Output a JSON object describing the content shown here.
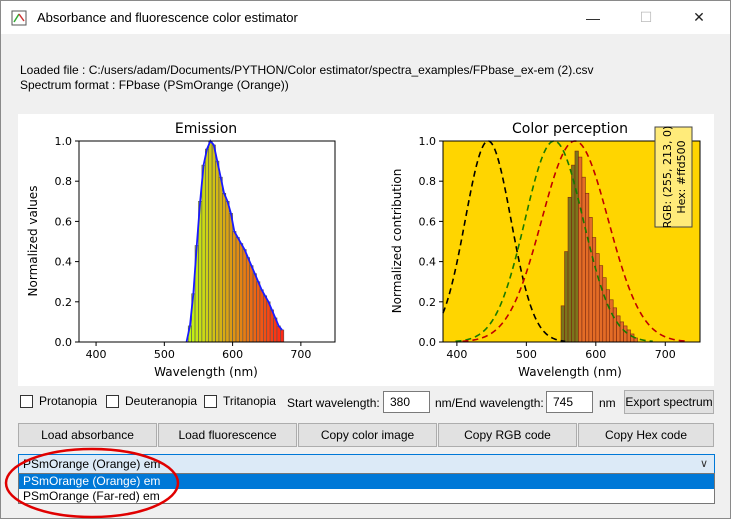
{
  "window": {
    "title": "Absorbance and fluorescence color estimator",
    "controls": {
      "minimize": "—",
      "maximize": "☐",
      "close": "✕"
    }
  },
  "info": {
    "loaded_file": "Loaded file : C:/users/adam/Documents/PYTHON/Color estimator/spectra_examples/FPbase_ex-em (2).csv",
    "spectrum_format": "Spectrum format : FPbase (PSmOrange (Orange))"
  },
  "chart_data": [
    {
      "type": "bar",
      "title": "Emission",
      "xlabel": "Wavelength (nm)",
      "ylabel": "Normalized values",
      "xlim": [
        375,
        750
      ],
      "ylim": [
        0,
        1.0
      ],
      "xticks": [
        "400",
        "500",
        "600",
        "700"
      ],
      "yticks": [
        "0.0",
        "0.2",
        "0.4",
        "0.6",
        "0.8",
        "1.0"
      ],
      "x": [
        530,
        535,
        540,
        545,
        550,
        555,
        560,
        565,
        570,
        575,
        580,
        585,
        590,
        595,
        600,
        605,
        610,
        615,
        620,
        625,
        630,
        635,
        640,
        645,
        650,
        655,
        660,
        665,
        670
      ],
      "values": [
        0.0,
        0.08,
        0.24,
        0.48,
        0.7,
        0.88,
        0.96,
        1.0,
        0.98,
        0.9,
        0.82,
        0.74,
        0.7,
        0.64,
        0.55,
        0.52,
        0.49,
        0.46,
        0.42,
        0.38,
        0.34,
        0.3,
        0.26,
        0.23,
        0.2,
        0.16,
        0.12,
        0.08,
        0.06
      ]
    },
    {
      "type": "line",
      "title": "Color perception",
      "xlabel": "Wavelength (nm)",
      "ylabel": "Normalized contribution",
      "xlim": [
        380,
        750
      ],
      "ylim": [
        0,
        1.0
      ],
      "xticks": [
        "400",
        "500",
        "600",
        "700"
      ],
      "yticks": [
        "0.0",
        "0.2",
        "0.4",
        "0.6",
        "0.8",
        "1.0"
      ],
      "background": "#ffd500",
      "annotation": "RGB: (255, 213, 0)\nHex: #ffd500",
      "series": [
        {
          "color": "#000000",
          "center": 445,
          "width": 33
        },
        {
          "color": "#1a7a00",
          "center": 540,
          "width": 42
        },
        {
          "color": "#c00000",
          "center": 570,
          "width": 48
        }
      ],
      "histogram_x": [
        550,
        555,
        560,
        565,
        570,
        575,
        580,
        585,
        590,
        595,
        600,
        605,
        610,
        615,
        620,
        625,
        630,
        635,
        640,
        645,
        650,
        655
      ],
      "histogram_values": [
        0.18,
        0.45,
        0.72,
        0.88,
        0.95,
        0.92,
        0.82,
        0.74,
        0.62,
        0.52,
        0.44,
        0.38,
        0.32,
        0.26,
        0.21,
        0.17,
        0.13,
        0.1,
        0.08,
        0.06,
        0.04,
        0.02
      ]
    }
  ],
  "controls": {
    "protanopia": "Protanopia",
    "deuteranopia": "Deuteranopia",
    "tritanopia": "Tritanopia",
    "start_label": "Start wavelength:",
    "start_value": "380",
    "end_label": "nm/End wavelength:",
    "end_value": "745",
    "nm_label": "nm",
    "export_button": "Export spectrum"
  },
  "buttons": {
    "load_absorbance": "Load absorbance",
    "load_fluorescence": "Load fluorescence",
    "copy_color_image": "Copy color image",
    "copy_rgb": "Copy RGB code",
    "copy_hex": "Copy Hex code"
  },
  "dropdown": {
    "selected": "PSmOrange (Orange) em",
    "options": [
      "PSmOrange (Orange) em",
      "PSmOrange (Far-red) em"
    ]
  },
  "colors": {
    "accent": "#0078d7",
    "highlight_ellipse": "#e00000"
  }
}
